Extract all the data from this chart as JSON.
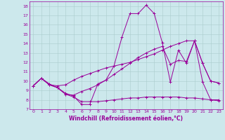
{
  "xlabel": "Windchill (Refroidissement éolien,°C)",
  "x_ticks": [
    0,
    1,
    2,
    3,
    4,
    5,
    6,
    7,
    8,
    9,
    10,
    11,
    12,
    13,
    14,
    15,
    16,
    17,
    18,
    19,
    20,
    21,
    22,
    23
  ],
  "ylim": [
    7,
    18.5
  ],
  "xlim": [
    -0.5,
    23.5
  ],
  "yticks": [
    7,
    8,
    9,
    10,
    11,
    12,
    13,
    14,
    15,
    16,
    17,
    18
  ],
  "bg_color": "#cce8ec",
  "line_color": "#990099",
  "grid_color": "#aacccc",
  "lines": [
    {
      "x": [
        0,
        1,
        2,
        3,
        4,
        5,
        6,
        7,
        8,
        9,
        10,
        11,
        12,
        13,
        14,
        15,
        16,
        17,
        18,
        19,
        20,
        21,
        22,
        23
      ],
      "y": [
        9.5,
        10.3,
        9.7,
        9.3,
        8.7,
        8.4,
        7.5,
        7.5,
        9.7,
        10.1,
        11.6,
        14.7,
        17.2,
        17.2,
        18.1,
        17.2,
        14.1,
        9.9,
        13.3,
        11.9,
        14.3,
        9.9,
        8.0,
        8.0
      ]
    },
    {
      "x": [
        0,
        1,
        2,
        3,
        4,
        5,
        6,
        7,
        8,
        9,
        10,
        11,
        12,
        13,
        14,
        15,
        16,
        17,
        18,
        19,
        20,
        21,
        22,
        23
      ],
      "y": [
        9.5,
        10.3,
        9.6,
        9.3,
        8.6,
        8.3,
        7.8,
        7.8,
        7.8,
        7.9,
        8.0,
        8.1,
        8.2,
        8.2,
        8.3,
        8.3,
        8.3,
        8.3,
        8.3,
        8.2,
        8.2,
        8.1,
        8.0,
        7.9
      ]
    },
    {
      "x": [
        0,
        1,
        2,
        3,
        4,
        5,
        6,
        7,
        8,
        9,
        10,
        11,
        12,
        13,
        14,
        15,
        16,
        17,
        18,
        19,
        20,
        21,
        22,
        23
      ],
      "y": [
        9.5,
        10.3,
        9.6,
        9.3,
        8.6,
        8.5,
        8.9,
        9.2,
        9.6,
        10.1,
        10.7,
        11.3,
        11.9,
        12.5,
        13.0,
        13.4,
        13.7,
        11.8,
        12.2,
        12.1,
        14.3,
        11.9,
        10.0,
        9.8
      ]
    },
    {
      "x": [
        0,
        1,
        2,
        3,
        4,
        5,
        6,
        7,
        8,
        9,
        10,
        11,
        12,
        13,
        14,
        15,
        16,
        17,
        18,
        19,
        20,
        21,
        22,
        23
      ],
      "y": [
        9.5,
        10.3,
        9.6,
        9.5,
        9.6,
        10.1,
        10.5,
        10.8,
        11.1,
        11.4,
        11.6,
        11.8,
        12.0,
        12.3,
        12.6,
        12.9,
        13.3,
        13.7,
        14.0,
        14.3,
        14.3,
        11.9,
        10.0,
        9.8
      ]
    }
  ]
}
